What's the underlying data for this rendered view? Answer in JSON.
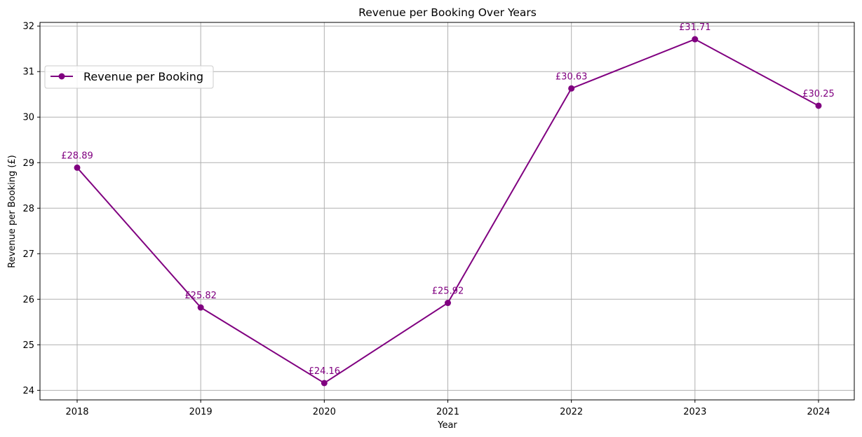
{
  "chart_data": {
    "type": "line",
    "title": "Revenue per Booking Over Years",
    "xlabel": "Year",
    "ylabel": "Revenue per Booking (£)",
    "x": [
      "2018",
      "2019",
      "2020",
      "2021",
      "2022",
      "2023",
      "2024"
    ],
    "series": [
      {
        "name": "Revenue per Booking",
        "values": [
          28.89,
          25.82,
          24.16,
          25.92,
          30.63,
          31.71,
          30.25
        ],
        "labels": [
          "£28.89",
          "£25.82",
          "£24.16",
          "£25.92",
          "£30.63",
          "£31.71",
          "£30.25"
        ],
        "color": "#800080",
        "marker": "circle"
      }
    ],
    "yticks": [
      "24",
      "25",
      "26",
      "27",
      "28",
      "29",
      "30",
      "31",
      "32"
    ],
    "ylim": [
      23.79,
      32.08
    ],
    "grid": true,
    "legend_position": "upper-left"
  }
}
